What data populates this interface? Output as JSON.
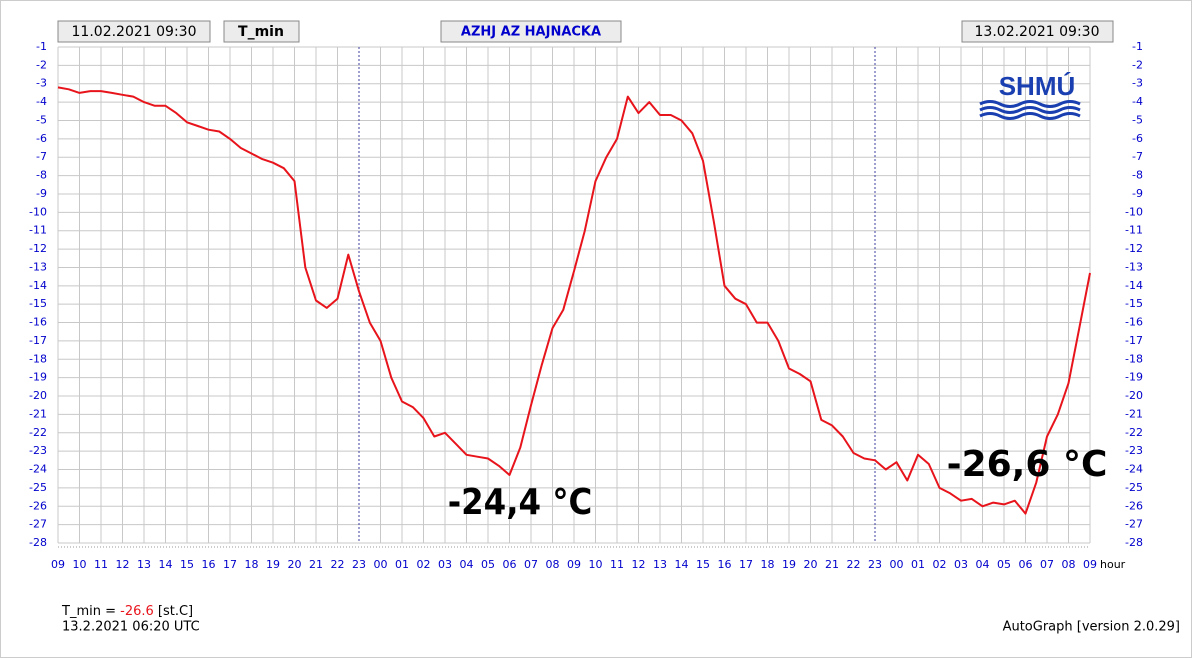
{
  "header": {
    "start": "11.02.2021 09:30",
    "variable": "T_min",
    "station": "AZHJ AZ HAJNACKA",
    "end": "13.02.2021 09:30",
    "logo": "SHMÚ"
  },
  "chart_data": {
    "type": "line",
    "color": "#e8141c",
    "grid": true,
    "x_label": "hour",
    "annotations": [
      "-24,4 °C",
      "-26,6 °C"
    ],
    "xlim": [
      0,
      48
    ],
    "ylim": [
      -28,
      -1
    ],
    "xticks": [
      {
        "value": 0,
        "label": "09"
      },
      {
        "value": 1,
        "label": "10"
      },
      {
        "value": 2,
        "label": "11"
      },
      {
        "value": 3,
        "label": "12"
      },
      {
        "value": 4,
        "label": "13"
      },
      {
        "value": 5,
        "label": "14"
      },
      {
        "value": 6,
        "label": "15"
      },
      {
        "value": 7,
        "label": "16"
      },
      {
        "value": 8,
        "label": "17"
      },
      {
        "value": 9,
        "label": "18"
      },
      {
        "value": 10,
        "label": "19"
      },
      {
        "value": 11,
        "label": "20"
      },
      {
        "value": 12,
        "label": "21"
      },
      {
        "value": 13,
        "label": "22"
      },
      {
        "value": 14,
        "label": "23"
      },
      {
        "value": 15,
        "label": "00"
      },
      {
        "value": 16,
        "label": "01"
      },
      {
        "value": 17,
        "label": "02"
      },
      {
        "value": 18,
        "label": "03"
      },
      {
        "value": 19,
        "label": "04"
      },
      {
        "value": 20,
        "label": "05"
      },
      {
        "value": 21,
        "label": "06"
      },
      {
        "value": 22,
        "label": "07"
      },
      {
        "value": 23,
        "label": "08"
      },
      {
        "value": 24,
        "label": "09"
      },
      {
        "value": 25,
        "label": "10"
      },
      {
        "value": 26,
        "label": "11"
      },
      {
        "value": 27,
        "label": "12"
      },
      {
        "value": 28,
        "label": "13"
      },
      {
        "value": 29,
        "label": "14"
      },
      {
        "value": 30,
        "label": "15"
      },
      {
        "value": 31,
        "label": "16"
      },
      {
        "value": 32,
        "label": "17"
      },
      {
        "value": 33,
        "label": "18"
      },
      {
        "value": 34,
        "label": "19"
      },
      {
        "value": 35,
        "label": "20"
      },
      {
        "value": 36,
        "label": "21"
      },
      {
        "value": 37,
        "label": "22"
      },
      {
        "value": 38,
        "label": "23"
      },
      {
        "value": 39,
        "label": "00"
      },
      {
        "value": 40,
        "label": "01"
      },
      {
        "value": 41,
        "label": "02"
      },
      {
        "value": 42,
        "label": "03"
      },
      {
        "value": 43,
        "label": "04"
      },
      {
        "value": 44,
        "label": "05"
      },
      {
        "value": 45,
        "label": "06"
      },
      {
        "value": 46,
        "label": "07"
      },
      {
        "value": 47,
        "label": "08"
      },
      {
        "value": 48,
        "label": "09"
      }
    ],
    "yticks": [
      -1,
      -2,
      -3,
      -4,
      -5,
      -6,
      -7,
      -8,
      -9,
      -10,
      -11,
      -12,
      -13,
      -14,
      -15,
      -16,
      -17,
      -18,
      -19,
      -20,
      -21,
      -22,
      -23,
      -24,
      -25,
      -26,
      -27,
      -28
    ],
    "x": [
      0,
      0.5,
      1,
      1.5,
      2,
      2.5,
      3,
      3.5,
      4,
      4.5,
      5,
      5.5,
      6,
      6.5,
      7,
      7.5,
      8,
      8.5,
      9,
      9.5,
      10,
      10.5,
      11,
      11.5,
      12,
      12.5,
      13,
      13.5,
      14,
      14.5,
      15,
      15.5,
      16,
      16.5,
      17,
      17.5,
      18,
      18.5,
      19,
      19.5,
      20,
      20.5,
      21,
      21.5,
      22,
      22.5,
      23,
      23.5,
      24,
      24.5,
      25,
      25.5,
      26,
      26.5,
      27,
      27.5,
      28,
      28.5,
      29,
      29.5,
      30,
      30.5,
      31,
      31.5,
      32,
      32.5,
      33,
      33.5,
      34,
      34.5,
      35,
      35.5,
      36,
      36.5,
      37,
      37.5,
      38,
      38.5,
      39,
      39.5,
      40,
      40.5,
      41,
      41.5,
      42,
      42.5,
      43,
      43.5,
      44,
      44.5,
      45,
      45.5,
      46,
      46.5,
      47,
      47.5,
      48
    ],
    "values": [
      -3.2,
      -3.3,
      -3.5,
      -3.4,
      -3.4,
      -3.5,
      -3.6,
      -3.7,
      -4.0,
      -4.2,
      -4.2,
      -4.6,
      -5.1,
      -5.3,
      -5.5,
      -5.6,
      -6.0,
      -6.5,
      -6.8,
      -7.1,
      -7.3,
      -7.6,
      -8.3,
      -13.0,
      -14.8,
      -15.2,
      -14.7,
      -12.3,
      -14.3,
      -16.0,
      -17.0,
      -19.0,
      -20.3,
      -20.6,
      -21.2,
      -22.2,
      -22.0,
      -22.6,
      -23.2,
      -23.3,
      -23.4,
      -23.8,
      -24.3,
      -22.8,
      -20.5,
      -18.3,
      -16.3,
      -15.3,
      -13.2,
      -11.0,
      -8.3,
      -7.0,
      -6.0,
      -3.7,
      -4.6,
      -4.0,
      -4.7,
      -4.7,
      -5.0,
      -5.7,
      -7.2,
      -10.5,
      -14.0,
      -14.7,
      -15.0,
      -16.0,
      -16.0,
      -17.0,
      -18.5,
      -18.8,
      -19.2,
      -21.3,
      -21.6,
      -22.2,
      -23.1,
      -23.4,
      -23.5,
      -24.0,
      -23.6,
      -24.6,
      -23.2,
      -23.7,
      -25.0,
      -25.3,
      -25.7,
      -25.6,
      -26.0,
      -25.8,
      -25.9,
      -25.7,
      -26.4,
      -24.7,
      -22.2,
      -21.0,
      -19.3,
      -16.3,
      -13.3
    ]
  },
  "footer": {
    "label": "T_min =",
    "value": "-26.6",
    "unit": "[st.C]",
    "time": "13.2.2021 06:20 UTC",
    "software": "AutoGraph [version 2.0.29]"
  }
}
